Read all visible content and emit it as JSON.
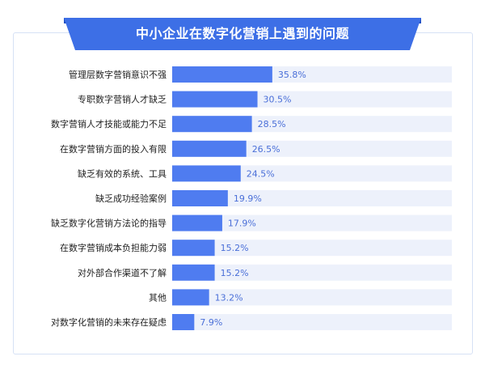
{
  "chart_data": {
    "type": "bar",
    "orientation": "horizontal",
    "title": "中小企业在数字化营销上遇到的问题",
    "categories": [
      "管理层数字营销意识不强",
      "专职数字营销人才缺乏",
      "数字营销人才技能或能力不足",
      "在数字营销方面的投入有限",
      "缺乏有效的系统、工具",
      "缺乏成功经验案例",
      "缺乏数字化营销方法论的指导",
      "在数字营销成本负担能力弱",
      "对外部合作渠道不了解",
      "其他",
      "对数字化营销的未来存在疑虑"
    ],
    "values": [
      35.8,
      30.5,
      28.5,
      26.5,
      24.5,
      19.9,
      17.9,
      15.2,
      15.2,
      13.2,
      7.9
    ],
    "value_labels": [
      "35.8%",
      "30.5%",
      "28.5%",
      "26.5%",
      "24.5%",
      "19.9%",
      "17.9%",
      "15.2%",
      "15.2%",
      "13.2%",
      "7.9%"
    ],
    "xlim": [
      0,
      100
    ],
    "grid": false,
    "colors": {
      "bar": "#4f7cf0",
      "track": "#edf1fb",
      "label": "#222222",
      "value_label": "#4a6fd8",
      "banner": "#3d6fe6",
      "banner_dark": "#1f4fc4"
    }
  }
}
